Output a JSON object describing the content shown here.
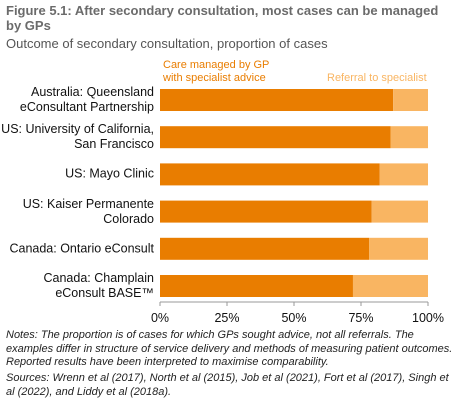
{
  "chart_data": {
    "type": "stacked-barh",
    "title": "Figure 5.1: After secondary consultation, most cases can be managed by GPs",
    "subtitle": "Outcome of secondary consultation, proportion of cases",
    "categories": [
      "Australia: Queensland eConsultant Partnership",
      "US: University of California, San Francisco",
      "US: Mayo Clinic",
      "US: Kaiser Permanente Colorado",
      "Canada: Ontario eConsult",
      "Canada: Champlain eConsult BASE™"
    ],
    "series": [
      {
        "name": "Care managed by GP with specialist advice",
        "color": "#e97d00",
        "values": [
          87,
          86,
          82,
          79,
          78,
          72
        ]
      },
      {
        "name": "Referral to specialist",
        "color": "#f9b562",
        "values": [
          13,
          14,
          18,
          21,
          22,
          28
        ]
      }
    ],
    "xlim": [
      0,
      100
    ],
    "xticks": [
      {
        "value": 0,
        "label": "0%"
      },
      {
        "value": 25,
        "label": "25%"
      },
      {
        "value": 50,
        "label": "50%"
      },
      {
        "value": 75,
        "label": "75%"
      },
      {
        "value": 100,
        "label": "100%"
      }
    ],
    "notes": "Notes: The proportion is of cases for which GPs sought advice, not all referrals. The examples differ in structure of service delivery and methods of measuring patient outcomes. Reported results have been interpreted to maximise comparability.",
    "sources": "Sources: Wrenn et al (2017), North et al (2015), Job et al (2021), Fort et al (2017), Singh et al (2022), and Liddy et al (2018a)."
  }
}
